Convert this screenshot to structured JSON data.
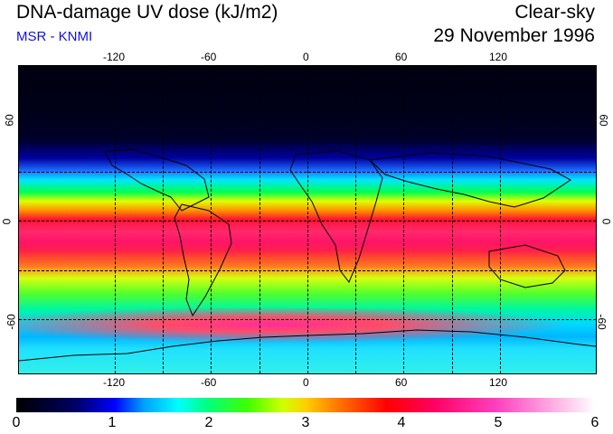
{
  "title": "DNA-damage UV dose (kJ/m2)",
  "subtitle": "MSR - KNMI",
  "condition": "Clear-sky",
  "date": "29 November 1996",
  "longitude_ticks": [
    "-120",
    "-60",
    "0",
    "60",
    "120"
  ],
  "latitude_ticks": [
    "60",
    "0",
    "-60"
  ],
  "colorbar": {
    "labels": [
      "0",
      "1",
      "2",
      "3",
      "4",
      "5",
      "6"
    ],
    "min": 0,
    "max": 6
  },
  "colors": {
    "subtitle": "#1010e0",
    "low": "#000000",
    "mid": "#00ff80",
    "high": "#ffffff"
  }
}
